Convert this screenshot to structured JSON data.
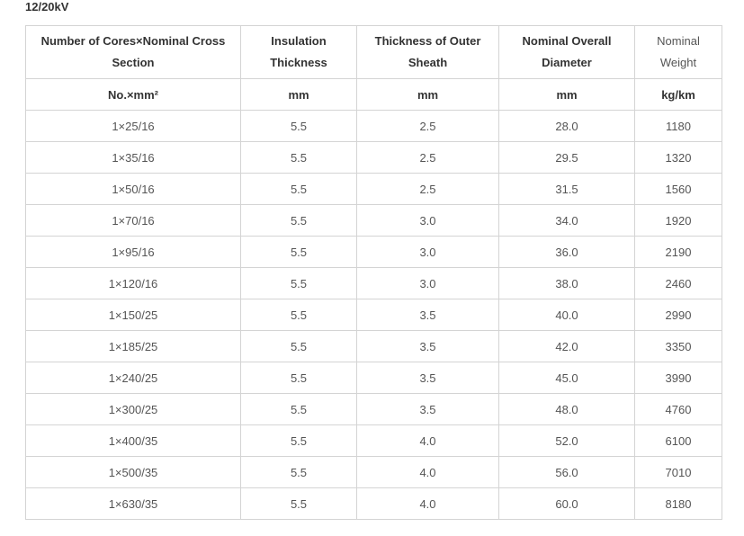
{
  "title": "12/20kV",
  "table": {
    "headers": [
      "Number of Cores×Nominal Cross Section",
      "Insulation Thickness",
      "Thickness of Outer Sheath",
      "Nominal Overall Diameter",
      "Nominal Weight"
    ],
    "units": [
      "No.×mm²",
      "mm",
      "mm",
      "mm",
      "kg/km"
    ],
    "rows": [
      [
        "1×25/16",
        "5.5",
        "2.5",
        "28.0",
        "1180"
      ],
      [
        "1×35/16",
        "5.5",
        "2.5",
        "29.5",
        "1320"
      ],
      [
        "1×50/16",
        "5.5",
        "2.5",
        "31.5",
        "1560"
      ],
      [
        "1×70/16",
        "5.5",
        "3.0",
        "34.0",
        "1920"
      ],
      [
        "1×95/16",
        "5.5",
        "3.0",
        "36.0",
        "2190"
      ],
      [
        "1×120/16",
        "5.5",
        "3.0",
        "38.0",
        "2460"
      ],
      [
        "1×150/25",
        "5.5",
        "3.5",
        "40.0",
        "2990"
      ],
      [
        "1×185/25",
        "5.5",
        "3.5",
        "42.0",
        "3350"
      ],
      [
        "1×240/25",
        "5.5",
        "3.5",
        "45.0",
        "3990"
      ],
      [
        "1×300/25",
        "5.5",
        "3.5",
        "48.0",
        "4760"
      ],
      [
        "1×400/35",
        "5.5",
        "4.0",
        "52.0",
        "6100"
      ],
      [
        "1×500/35",
        "5.5",
        "4.0",
        "56.0",
        "7010"
      ],
      [
        "1×630/35",
        "5.5",
        "4.0",
        "60.0",
        "8180"
      ]
    ]
  }
}
